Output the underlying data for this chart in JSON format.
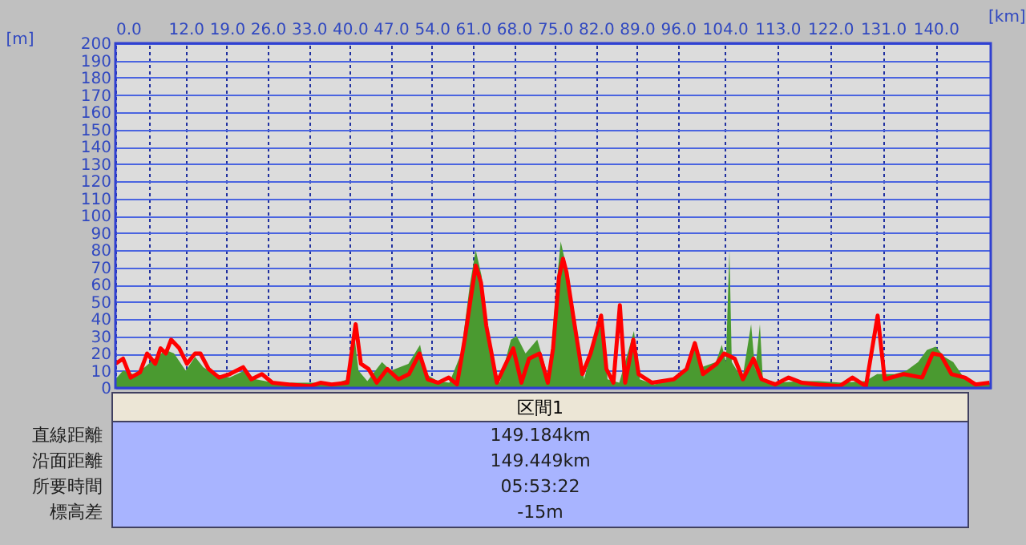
{
  "chart_data": {
    "type": "area",
    "xlabel": "[km]",
    "ylabel": "[m]",
    "xlim": [
      0,
      149.4
    ],
    "ylim": [
      0,
      200
    ],
    "xticks": [
      {
        "value": 0,
        "label": "0.0"
      },
      {
        "value": 5.7,
        "label": null
      },
      {
        "value": 12,
        "label": "12.0"
      },
      {
        "value": 19,
        "label": "19.0"
      },
      {
        "value": 26,
        "label": "26.0"
      },
      {
        "value": 33,
        "label": "33.0"
      },
      {
        "value": 40,
        "label": "40.0"
      },
      {
        "value": 47,
        "label": "47.0"
      },
      {
        "value": 54,
        "label": "54.0"
      },
      {
        "value": 61,
        "label": "61.0"
      },
      {
        "value": 68,
        "label": "68.0"
      },
      {
        "value": 75,
        "label": "75.0"
      },
      {
        "value": 82,
        "label": "82.0"
      },
      {
        "value": 89,
        "label": "89.0"
      },
      {
        "value": 96,
        "label": "96.0"
      },
      {
        "value": 104,
        "label": "104.0"
      },
      {
        "value": 113,
        "label": "113.0"
      },
      {
        "value": 122,
        "label": "122.0"
      },
      {
        "value": 131,
        "label": "131.0"
      },
      {
        "value": 140,
        "label": "140.0"
      }
    ],
    "yticks": [
      0,
      10,
      20,
      30,
      40,
      50,
      60,
      70,
      80,
      90,
      100,
      110,
      120,
      130,
      140,
      150,
      160,
      170,
      180,
      190,
      200
    ],
    "grid": true,
    "series": [
      {
        "color": "#4a9a30",
        "x": [
          0,
          1.3,
          3,
          5,
          7,
          8.6,
          10,
          12,
          13.6,
          15,
          17,
          19.5,
          22,
          24,
          27,
          30,
          35,
          37,
          39.6,
          40.8,
          41.5,
          43,
          45.5,
          47,
          50,
          52,
          53,
          55,
          57,
          59,
          60.5,
          61.5,
          62.5,
          64,
          65.6,
          67.5,
          68.5,
          70,
          72,
          74,
          75.3,
          76,
          77,
          78.5,
          80,
          81.5,
          83,
          84,
          86,
          88.5,
          89.5,
          92,
          95,
          97.5,
          99,
          100,
          102.5,
          103.5,
          104.2,
          104.8,
          105.2,
          107,
          108.5,
          109.2,
          110,
          110.5,
          113,
          117,
          120,
          124,
          128,
          130,
          133,
          135,
          137,
          138.5,
          140,
          141.5,
          143,
          145,
          147,
          149.4
        ],
        "values": [
          5,
          10,
          8,
          12,
          18,
          22,
          20,
          10,
          18,
          12,
          8,
          6,
          10,
          5,
          3,
          3,
          3,
          2,
          5,
          30,
          10,
          4,
          15,
          10,
          14,
          25,
          8,
          4,
          3,
          20,
          60,
          80,
          65,
          20,
          3,
          28,
          30,
          20,
          28,
          5,
          60,
          85,
          70,
          40,
          5,
          25,
          38,
          5,
          3,
          33,
          5,
          2,
          5,
          10,
          27,
          12,
          15,
          25,
          15,
          80,
          15,
          5,
          37,
          10,
          37,
          5,
          3,
          4,
          4,
          3,
          4,
          8,
          8,
          10,
          15,
          22,
          24,
          18,
          15,
          5,
          3,
          3
        ]
      },
      {
        "type": "line",
        "color": "#ff0000",
        "x": [
          0,
          1.3,
          2.6,
          4.2,
          5.4,
          6.8,
          7.7,
          8.6,
          9.5,
          10.9,
          12.2,
          13.6,
          14.5,
          15.9,
          17.7,
          19.5,
          21.8,
          23.2,
          25.0,
          26.8,
          29.6,
          33.2,
          35.0,
          36.9,
          39.6,
          41.0,
          41.9,
          43.2,
          44.6,
          46.4,
          48.3,
          50.1,
          51.9,
          53.3,
          55.1,
          56.9,
          58.3,
          59.7,
          60.6,
          61.5,
          62.4,
          63.3,
          64.2,
          65.1,
          67.9,
          69.3,
          70.6,
          72.4,
          73.8,
          74.7,
          75.7,
          76.4,
          77.0,
          78.4,
          79.7,
          81.1,
          82.9,
          83.8,
          85.0,
          86.1,
          87.0,
          88.4,
          89.3,
          91.6,
          95.3,
          97.5,
          98.9,
          100.3,
          102.6,
          103.9,
          105.7,
          107.1,
          108.9,
          110.3,
          112.6,
          114.9,
          117.2,
          119.9,
          123.6,
          125.8,
          128.1,
          130.1,
          131.3,
          134.5,
          137.7,
          139.5,
          140.9,
          142.7,
          145.0,
          146.8,
          149.2
        ],
        "values": [
          14,
          17,
          6,
          9,
          20,
          14,
          23,
          20,
          28,
          23,
          14,
          20,
          20,
          11,
          6,
          8,
          12,
          5,
          8,
          3,
          2,
          1,
          3,
          2,
          3,
          37,
          14,
          11,
          3,
          11,
          5,
          8,
          20,
          5,
          3,
          6,
          2,
          30,
          51,
          71,
          61,
          36,
          20,
          3,
          23,
          3,
          17,
          20,
          3,
          23,
          64,
          75,
          67,
          36,
          8,
          20,
          42,
          11,
          3,
          48,
          3,
          28,
          8,
          3,
          5,
          11,
          26,
          8,
          14,
          20,
          17,
          5,
          17,
          5,
          2,
          6,
          3,
          2,
          1,
          6,
          1,
          42,
          5,
          8,
          6,
          20,
          19,
          8,
          6,
          2,
          3
        ]
      }
    ],
    "annotations": [
      "区間1",
      "直線距離",
      "149.184km",
      "沿面距離",
      "149.449km",
      "所要時間",
      "05:53:22",
      "標高差",
      "-15m"
    ]
  }
}
